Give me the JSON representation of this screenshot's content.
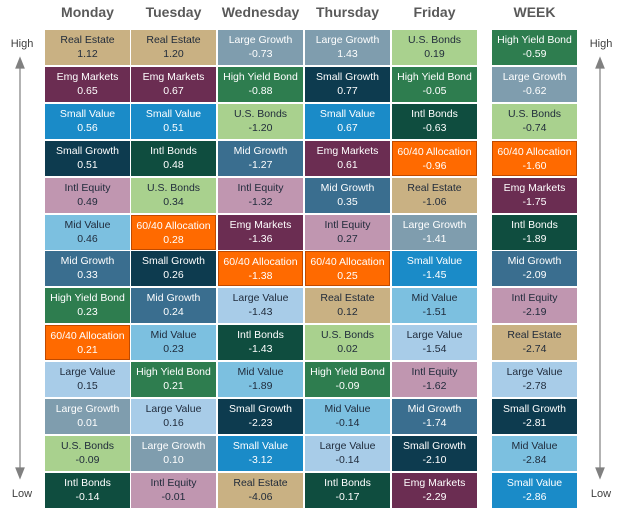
{
  "side_labels": {
    "high": "High",
    "low": "Low"
  },
  "palette": {
    "Real Estate": "#c9b183",
    "Emg Markets": "#6b2d52",
    "Small Value": "#1a8bc8",
    "Small Growth": "#0d3b4f",
    "Intl Equity": "#c096b0",
    "Mid Value": "#7cc0e0",
    "Mid Growth": "#3a6e8f",
    "High Yield Bond": "#2e7d4f",
    "60/40 Allocation": "#ff6a00",
    "Large Value": "#a8cce8",
    "Large Growth": "#7f9dae",
    "U.S. Bonds": "#a9d18e",
    "Intl Bonds": "#0f4d3f"
  },
  "columns": [
    {
      "header": "Monday",
      "cells": [
        {
          "name": "Real Estate",
          "value": "1.12"
        },
        {
          "name": "Emg Markets",
          "value": "0.65"
        },
        {
          "name": "Small Value",
          "value": "0.56"
        },
        {
          "name": "Small Growth",
          "value": "0.51"
        },
        {
          "name": "Intl Equity",
          "value": "0.49"
        },
        {
          "name": "Mid Value",
          "value": "0.46"
        },
        {
          "name": "Mid Growth",
          "value": "0.33"
        },
        {
          "name": "High Yield Bond",
          "value": "0.23"
        },
        {
          "name": "60/40 Allocation",
          "value": "0.21"
        },
        {
          "name": "Large Value",
          "value": "0.15"
        },
        {
          "name": "Large Growth",
          "value": "0.01"
        },
        {
          "name": "U.S. Bonds",
          "value": "-0.09"
        },
        {
          "name": "Intl Bonds",
          "value": "-0.14"
        }
      ]
    },
    {
      "header": "Tuesday",
      "cells": [
        {
          "name": "Real Estate",
          "value": "1.20"
        },
        {
          "name": "Emg Markets",
          "value": "0.67"
        },
        {
          "name": "Small Value",
          "value": "0.51"
        },
        {
          "name": "Intl Bonds",
          "value": "0.48"
        },
        {
          "name": "U.S. Bonds",
          "value": "0.34"
        },
        {
          "name": "60/40 Allocation",
          "value": "0.28"
        },
        {
          "name": "Small Growth",
          "value": "0.26"
        },
        {
          "name": "Mid Growth",
          "value": "0.24"
        },
        {
          "name": "Mid Value",
          "value": "0.23"
        },
        {
          "name": "High Yield Bond",
          "value": "0.21"
        },
        {
          "name": "Large Value",
          "value": "0.16"
        },
        {
          "name": "Large Growth",
          "value": "0.10"
        },
        {
          "name": "Intl Equity",
          "value": "-0.01"
        }
      ]
    },
    {
      "header": "Wednesday",
      "cells": [
        {
          "name": "Large Growth",
          "value": "-0.73"
        },
        {
          "name": "High Yield Bond",
          "value": "-0.88"
        },
        {
          "name": "U.S. Bonds",
          "value": "-1.20"
        },
        {
          "name": "Mid Growth",
          "value": "-1.27"
        },
        {
          "name": "Intl Equity",
          "value": "-1.32"
        },
        {
          "name": "Emg Markets",
          "value": "-1.36"
        },
        {
          "name": "60/40 Allocation",
          "value": "-1.38"
        },
        {
          "name": "Large Value",
          "value": "-1.43"
        },
        {
          "name": "Intl Bonds",
          "value": "-1.43"
        },
        {
          "name": "Mid Value",
          "value": "-1.89"
        },
        {
          "name": "Small Growth",
          "value": "-2.23"
        },
        {
          "name": "Small Value",
          "value": "-3.12"
        },
        {
          "name": "Real Estate",
          "value": "-4.06"
        }
      ]
    },
    {
      "header": "Thursday",
      "cells": [
        {
          "name": "Large Growth",
          "value": "1.43"
        },
        {
          "name": "Small Growth",
          "value": "0.77"
        },
        {
          "name": "Small Value",
          "value": "0.67"
        },
        {
          "name": "Emg Markets",
          "value": "0.61"
        },
        {
          "name": "Mid Growth",
          "value": "0.35"
        },
        {
          "name": "Intl Equity",
          "value": "0.27"
        },
        {
          "name": "60/40 Allocation",
          "value": "0.25"
        },
        {
          "name": "Real Estate",
          "value": "0.12"
        },
        {
          "name": "U.S. Bonds",
          "value": "0.02"
        },
        {
          "name": "High Yield Bond",
          "value": "-0.09"
        },
        {
          "name": "Mid Value",
          "value": "-0.14"
        },
        {
          "name": "Large Value",
          "value": "-0.14"
        },
        {
          "name": "Intl Bonds",
          "value": "-0.17"
        }
      ]
    },
    {
      "header": "Friday",
      "cells": [
        {
          "name": "U.S. Bonds",
          "value": "0.19"
        },
        {
          "name": "High Yield Bond",
          "value": "-0.05"
        },
        {
          "name": "Intl Bonds",
          "value": "-0.63"
        },
        {
          "name": "60/40 Allocation",
          "value": "-0.96"
        },
        {
          "name": "Real Estate",
          "value": "-1.06"
        },
        {
          "name": "Large Growth",
          "value": "-1.41"
        },
        {
          "name": "Small Value",
          "value": "-1.45"
        },
        {
          "name": "Mid Value",
          "value": "-1.51"
        },
        {
          "name": "Large Value",
          "value": "-1.54"
        },
        {
          "name": "Intl Equity",
          "value": "-1.62"
        },
        {
          "name": "Mid Growth",
          "value": "-1.74"
        },
        {
          "name": "Small Growth",
          "value": "-2.10"
        },
        {
          "name": "Emg Markets",
          "value": "-2.29"
        }
      ]
    },
    {
      "header": "WEEK",
      "cells": [
        {
          "name": "High Yield Bond",
          "value": "-0.59"
        },
        {
          "name": "Large Growth",
          "value": "-0.62"
        },
        {
          "name": "U.S. Bonds",
          "value": "-0.74"
        },
        {
          "name": "60/40 Allocation",
          "value": "-1.60"
        },
        {
          "name": "Emg Markets",
          "value": "-1.75"
        },
        {
          "name": "Intl Bonds",
          "value": "-1.89"
        },
        {
          "name": "Mid Growth",
          "value": "-2.09"
        },
        {
          "name": "Intl Equity",
          "value": "-2.19"
        },
        {
          "name": "Real Estate",
          "value": "-2.74"
        },
        {
          "name": "Large Value",
          "value": "-2.78"
        },
        {
          "name": "Small Growth",
          "value": "-2.81"
        },
        {
          "name": "Mid Value",
          "value": "-2.84"
        },
        {
          "name": "Small Value",
          "value": "-2.86"
        }
      ]
    }
  ]
}
